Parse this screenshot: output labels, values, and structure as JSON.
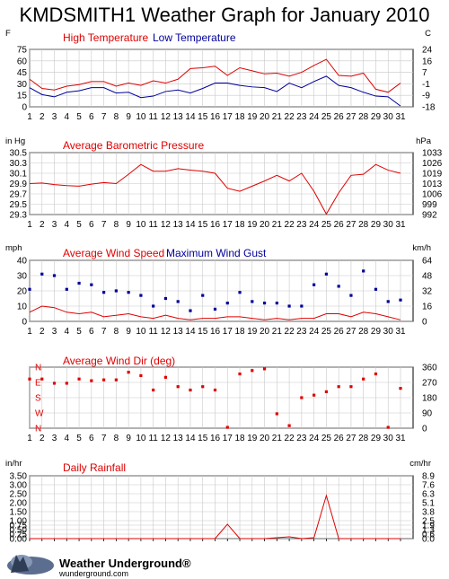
{
  "page": {
    "title": "KMDSMITH1 Weather Graph for January 2010",
    "brand": "Weather Underground",
    "brand_mark": "®",
    "brand_url": "wunderground.com"
  },
  "colors": {
    "red": "#e00000",
    "blue": "#000099",
    "grid": "#c8c8c8"
  },
  "chart_data": [
    {
      "type": "line",
      "id": "temperature",
      "left_unit": "F",
      "right_unit": "C",
      "legend": [
        {
          "name": "High Temperature",
          "color": "#e00000"
        },
        {
          "name": "Low Temperature",
          "color": "#000099"
        }
      ],
      "x": [
        1,
        2,
        3,
        4,
        5,
        6,
        7,
        8,
        9,
        10,
        11,
        12,
        13,
        14,
        15,
        16,
        17,
        18,
        19,
        20,
        21,
        22,
        23,
        24,
        25,
        26,
        27,
        28,
        29,
        30,
        31
      ],
      "ylim": [
        0,
        75
      ],
      "yticks": [
        0,
        15,
        30,
        45,
        60,
        75
      ],
      "yticks_labels": [
        "0",
        "15",
        "30",
        "45",
        "60",
        "75"
      ],
      "right_labels": [
        "-18",
        "-9",
        "-1",
        "7",
        "16",
        "24"
      ],
      "series": [
        {
          "name": "High Temperature",
          "color": "#e00000",
          "values": [
            36,
            24,
            22,
            27,
            29,
            33,
            33,
            27,
            31,
            28,
            34,
            31,
            36,
            50,
            51,
            53,
            41,
            51,
            47,
            43,
            44,
            40,
            45,
            54,
            62,
            41,
            40,
            44,
            23,
            19,
            31
          ]
        },
        {
          "name": "Low Temperature",
          "color": "#000099",
          "values": [
            25,
            16,
            13,
            19,
            21,
            25,
            25,
            18,
            19,
            12,
            14,
            20,
            22,
            18,
            24,
            31,
            31,
            28,
            26,
            25,
            20,
            31,
            25,
            33,
            40,
            28,
            25,
            19,
            14,
            13,
            1
          ]
        }
      ]
    },
    {
      "type": "line",
      "id": "pressure",
      "left_unit": "in Hg",
      "right_unit": "hPa",
      "legend": [
        {
          "name": "Average Barometric Pressure",
          "color": "#e00000"
        }
      ],
      "x": [
        1,
        2,
        3,
        4,
        5,
        6,
        7,
        8,
        9,
        10,
        11,
        12,
        13,
        14,
        15,
        16,
        17,
        18,
        19,
        20,
        21,
        22,
        23,
        24,
        25,
        26,
        27,
        28,
        29,
        30,
        31
      ],
      "ylim": [
        29.3,
        30.5
      ],
      "yticks": [
        29.3,
        29.5,
        29.7,
        29.9,
        30.1,
        30.3,
        30.5
      ],
      "yticks_labels": [
        "29.3",
        "29.5",
        "29.7",
        "29.9",
        "30.1",
        "30.3",
        "30.5"
      ],
      "right_labels": [
        "992",
        "999",
        "1006",
        "1013",
        "1019",
        "1026",
        "1033"
      ],
      "series": [
        {
          "name": "Average Barometric Pressure",
          "color": "#e00000",
          "values": [
            29.9,
            29.91,
            29.88,
            29.86,
            29.85,
            29.89,
            29.92,
            29.9,
            30.08,
            30.27,
            30.14,
            30.14,
            30.19,
            30.16,
            30.14,
            30.1,
            29.81,
            29.75,
            29.85,
            29.95,
            30.06,
            29.95,
            30.1,
            29.75,
            29.31,
            29.72,
            30.06,
            30.08,
            30.27,
            30.16,
            30.1
          ]
        }
      ]
    },
    {
      "type": "line",
      "id": "wind",
      "left_unit": "mph",
      "right_unit": "km/h",
      "legend": [
        {
          "name": "Average Wind Speed",
          "color": "#e00000"
        },
        {
          "name": "Maximum Wind Gust",
          "color": "#000099"
        }
      ],
      "x": [
        1,
        2,
        3,
        4,
        5,
        6,
        7,
        8,
        9,
        10,
        11,
        12,
        13,
        14,
        15,
        16,
        17,
        18,
        19,
        20,
        21,
        22,
        23,
        24,
        25,
        26,
        27,
        28,
        29,
        30,
        31
      ],
      "ylim": [
        0,
        40
      ],
      "yticks": [
        0,
        10,
        20,
        30,
        40
      ],
      "yticks_labels": [
        "0",
        "10",
        "20",
        "30",
        "40"
      ],
      "right_labels": [
        "0",
        "16",
        "32",
        "48",
        "64"
      ],
      "series": [
        {
          "name": "Average Wind Speed",
          "color": "#e00000",
          "style": "line",
          "values": [
            6,
            10,
            9,
            6,
            5,
            6,
            3,
            4,
            5,
            3,
            2,
            4,
            2,
            1,
            2,
            2,
            3,
            3,
            2,
            1,
            2,
            1,
            2,
            2,
            5,
            5,
            3,
            6,
            5,
            3,
            1
          ]
        },
        {
          "name": "Maximum Wind Gust",
          "color": "#000099",
          "style": "points",
          "values": [
            21,
            31,
            30,
            21,
            25,
            24,
            19,
            20,
            19,
            17,
            10,
            15,
            13,
            7,
            17,
            8,
            12,
            19,
            13,
            12,
            12,
            10,
            10,
            24,
            31,
            23,
            17,
            33,
            21,
            13,
            14
          ]
        }
      ]
    },
    {
      "type": "scatter",
      "id": "wind_dir",
      "left_unit": "",
      "right_unit": "",
      "legend": [
        {
          "name": "Average Wind Dir (deg)",
          "color": "#e00000"
        }
      ],
      "x": [
        1,
        2,
        3,
        4,
        5,
        6,
        7,
        8,
        9,
        10,
        11,
        12,
        13,
        14,
        15,
        16,
        17,
        18,
        19,
        20,
        21,
        22,
        23,
        24,
        25,
        26,
        27,
        28,
        29,
        30,
        31
      ],
      "ylim": [
        0,
        360
      ],
      "yticks": [
        0,
        90,
        180,
        270,
        360
      ],
      "left_labels": [
        "N",
        "W",
        "S",
        "E",
        "N"
      ],
      "right_labels": [
        "0",
        "90",
        "180",
        "270",
        "360"
      ],
      "series": [
        {
          "name": "Average Wind Dir (deg)",
          "color": "#e00000",
          "values": [
            290,
            290,
            265,
            265,
            290,
            280,
            285,
            285,
            330,
            310,
            225,
            300,
            245,
            225,
            245,
            225,
            5,
            320,
            340,
            350,
            85,
            15,
            180,
            195,
            215,
            245,
            245,
            290,
            320,
            5,
            235
          ]
        }
      ]
    },
    {
      "type": "line",
      "id": "rain",
      "left_unit": "in/hr",
      "right_unit": "cm/hr",
      "legend": [
        {
          "name": "Daily Rainfall",
          "color": "#e00000"
        }
      ],
      "x": [
        1,
        2,
        3,
        4,
        5,
        6,
        7,
        8,
        9,
        10,
        11,
        12,
        13,
        14,
        15,
        16,
        17,
        18,
        19,
        20,
        21,
        22,
        23,
        24,
        25,
        26,
        27,
        28,
        29,
        30,
        31
      ],
      "ylim": [
        0,
        3.5
      ],
      "yticks": [
        0,
        0.25,
        0.5,
        0.75,
        1.0,
        1.5,
        2.0,
        2.5,
        3.0,
        3.5
      ],
      "yticks_labels": [
        "0.00",
        "0.25",
        "0.50",
        "0.75",
        "1.00",
        "1.50",
        "2.00",
        "2.50",
        "3.00",
        "3.50"
      ],
      "right_labels": [
        "0.0",
        "0.6",
        "1.3",
        "1.9",
        "2.5",
        "3.8",
        "5.1",
        "6.3",
        "7.6",
        "8.9"
      ],
      "series": [
        {
          "name": "Daily Rainfall",
          "color": "#e00000",
          "values": [
            0,
            0,
            0,
            0,
            0,
            0,
            0,
            0,
            0,
            0,
            0,
            0,
            0,
            0,
            0,
            0,
            0.8,
            0,
            0,
            0,
            0.05,
            0.1,
            0,
            0.05,
            2.4,
            0,
            0,
            0,
            0,
            0,
            0
          ]
        }
      ]
    }
  ]
}
